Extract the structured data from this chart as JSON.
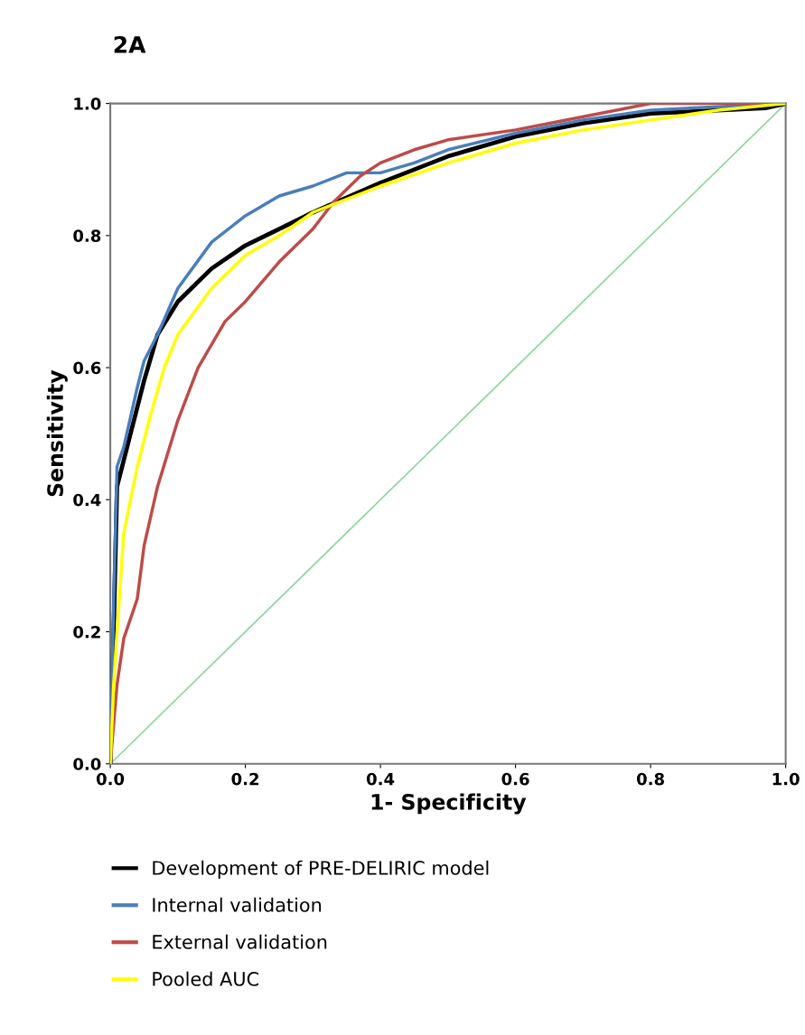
{
  "chart_data": {
    "type": "line",
    "title": "2A",
    "xlabel": "1- Specificity",
    "ylabel": "Sensitivity",
    "xlim": [
      0,
      1
    ],
    "ylim": [
      0,
      1
    ],
    "xticks": [
      {
        "value": 0,
        "label": "0.0"
      },
      0.2,
      0.4,
      0.6,
      0.8,
      {
        "value": 1,
        "label": "1.0"
      }
    ],
    "yticks": [
      {
        "value": 0,
        "label": "0.0"
      },
      0.2,
      0.4,
      0.6,
      0.8,
      {
        "value": 1,
        "label": "1.0"
      }
    ],
    "grid": false,
    "legend": "bottom",
    "marker": "none",
    "line_style": "solid",
    "series": [
      {
        "name": "Development of PRE-DELIRIC model",
        "color": "#000000",
        "x": [
          0,
          0.005,
          0.01,
          0.03,
          0.05,
          0.07,
          0.1,
          0.15,
          0.2,
          0.25,
          0.3,
          0.4,
          0.5,
          0.6,
          0.7,
          0.8,
          0.97,
          1
        ],
        "values": [
          0,
          0.2,
          0.42,
          0.5,
          0.58,
          0.65,
          0.7,
          0.75,
          0.785,
          0.81,
          0.835,
          0.88,
          0.92,
          0.95,
          0.97,
          0.985,
          0.993,
          1
        ]
      },
      {
        "name": "Internal validation",
        "color": "#4a7ebb",
        "x": [
          0,
          0.005,
          0.01,
          0.02,
          0.04,
          0.05,
          0.07,
          0.1,
          0.15,
          0.2,
          0.25,
          0.3,
          0.35,
          0.4,
          0.45,
          0.5,
          0.6,
          0.7,
          0.8,
          0.9,
          1
        ],
        "values": [
          0,
          0.25,
          0.45,
          0.48,
          0.57,
          0.61,
          0.65,
          0.72,
          0.79,
          0.83,
          0.86,
          0.875,
          0.895,
          0.895,
          0.91,
          0.93,
          0.955,
          0.975,
          0.99,
          0.995,
          1
        ]
      },
      {
        "name": "External validation",
        "color": "#be4b48",
        "x": [
          0,
          0.01,
          0.02,
          0.04,
          0.05,
          0.07,
          0.1,
          0.13,
          0.17,
          0.2,
          0.25,
          0.3,
          0.33,
          0.37,
          0.4,
          0.45,
          0.5,
          0.6,
          0.7,
          0.8,
          1
        ],
        "values": [
          0,
          0.12,
          0.19,
          0.25,
          0.33,
          0.42,
          0.52,
          0.6,
          0.67,
          0.7,
          0.76,
          0.81,
          0.85,
          0.89,
          0.91,
          0.93,
          0.945,
          0.96,
          0.98,
          1,
          1
        ]
      },
      {
        "name": "Pooled AUC",
        "color": "#ffff00",
        "x": [
          0,
          0.005,
          0.01,
          0.02,
          0.04,
          0.06,
          0.08,
          0.1,
          0.15,
          0.2,
          0.25,
          0.3,
          0.4,
          0.5,
          0.6,
          0.7,
          0.8,
          0.9,
          1
        ],
        "values": [
          0,
          0.12,
          0.2,
          0.35,
          0.45,
          0.53,
          0.6,
          0.65,
          0.72,
          0.77,
          0.8,
          0.835,
          0.875,
          0.91,
          0.94,
          0.96,
          0.975,
          0.99,
          1
        ]
      },
      {
        "color": "#8fd6a0",
        "x": [
          0,
          1
        ],
        "values": [
          0,
          1
        ]
      }
    ]
  }
}
